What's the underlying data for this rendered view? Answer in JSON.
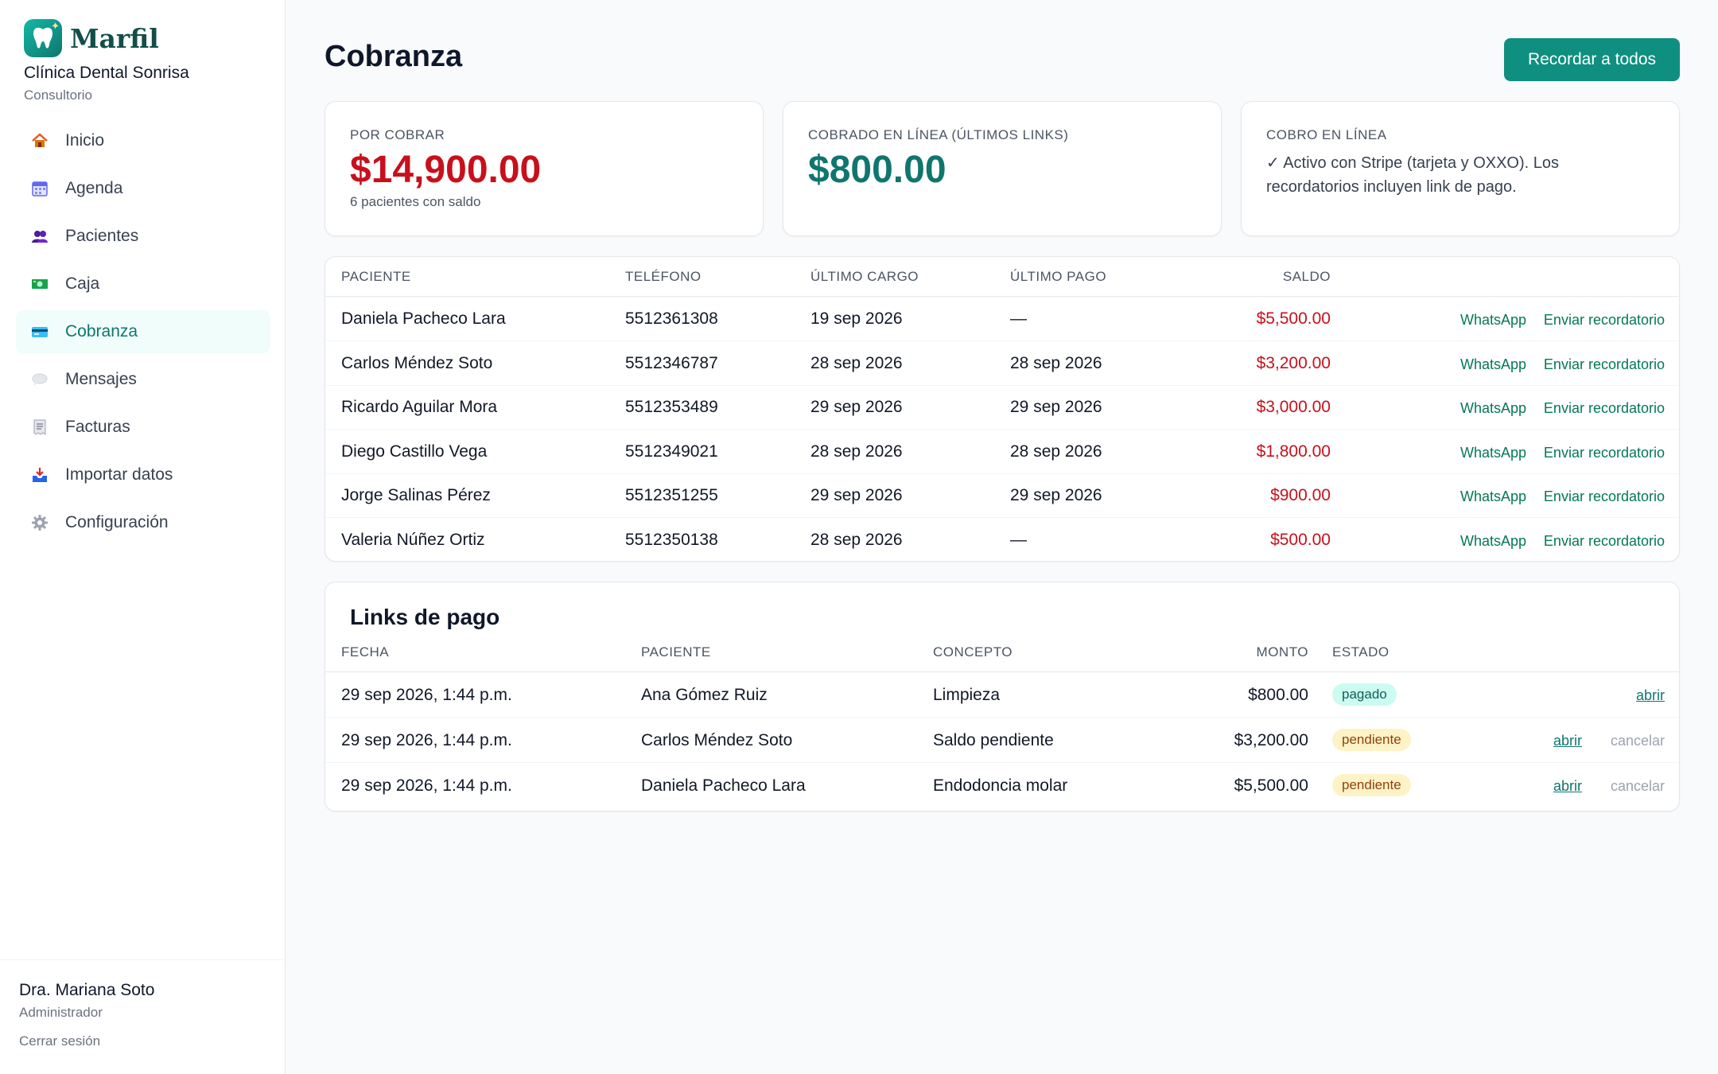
{
  "brand": {
    "name": "Marfil"
  },
  "clinic": {
    "name": "Clínica Dental Sonrisa",
    "type": "Consultorio"
  },
  "nav": [
    {
      "label": "Inicio",
      "icon": "house-icon"
    },
    {
      "label": "Agenda",
      "icon": "calendar-icon"
    },
    {
      "label": "Pacientes",
      "icon": "users-icon"
    },
    {
      "label": "Caja",
      "icon": "money-icon"
    },
    {
      "label": "Cobranza",
      "icon": "credit-card-icon",
      "active": true
    },
    {
      "label": "Mensajes",
      "icon": "speech-bubble-icon"
    },
    {
      "label": "Facturas",
      "icon": "receipt-icon"
    },
    {
      "label": "Importar datos",
      "icon": "inbox-tray-icon"
    },
    {
      "label": "Configuración",
      "icon": "gear-icon"
    }
  ],
  "user": {
    "name": "Dra. Mariana Soto",
    "role": "Administrador",
    "logout": "Cerrar sesión"
  },
  "page": {
    "title": "Cobranza",
    "remind_all": "Recordar a todos"
  },
  "stats": {
    "receivable": {
      "label": "POR COBRAR",
      "value": "$14,900.00",
      "sub": "6 pacientes con saldo"
    },
    "collected": {
      "label": "COBRADO EN LÍNEA (ÚLTIMOS LINKS)",
      "value": "$800.00"
    },
    "online": {
      "label": "COBRO EN LÍNEA",
      "text": "✓ Activo con Stripe (tarjeta y OXXO). Los recordatorios incluyen link de pago."
    }
  },
  "balances": {
    "headers": {
      "patient": "PACIENTE",
      "phone": "TELÉFONO",
      "last_charge": "ÚLTIMO CARGO",
      "last_payment": "ÚLTIMO PAGO",
      "balance": "SALDO"
    },
    "action_whatsapp": "WhatsApp",
    "action_remind": "Enviar recordatorio",
    "rows": [
      {
        "patient": "Daniela Pacheco Lara",
        "phone": "5512361308",
        "last_charge": "19 sep 2026",
        "last_payment": "—",
        "balance": "$5,500.00"
      },
      {
        "patient": "Carlos Méndez Soto",
        "phone": "5512346787",
        "last_charge": "28 sep 2026",
        "last_payment": "28 sep 2026",
        "balance": "$3,200.00"
      },
      {
        "patient": "Ricardo Aguilar Mora",
        "phone": "5512353489",
        "last_charge": "29 sep 2026",
        "last_payment": "29 sep 2026",
        "balance": "$3,000.00"
      },
      {
        "patient": "Diego Castillo Vega",
        "phone": "5512349021",
        "last_charge": "28 sep 2026",
        "last_payment": "28 sep 2026",
        "balance": "$1,800.00"
      },
      {
        "patient": "Jorge Salinas Pérez",
        "phone": "5512351255",
        "last_charge": "29 sep 2026",
        "last_payment": "29 sep 2026",
        "balance": "$900.00"
      },
      {
        "patient": "Valeria Núñez Ortiz",
        "phone": "5512350138",
        "last_charge": "28 sep 2026",
        "last_payment": "—",
        "balance": "$500.00"
      }
    ]
  },
  "links": {
    "title": "Links de pago",
    "headers": {
      "date": "FECHA",
      "patient": "PACIENTE",
      "concept": "CONCEPTO",
      "amount": "MONTO",
      "status": "ESTADO"
    },
    "action_open": "abrir",
    "action_cancel": "cancelar",
    "rows": [
      {
        "date": "29 sep 2026, 1:44 p.m.",
        "patient": "Ana Gómez Ruiz",
        "concept": "Limpieza",
        "amount": "$800.00",
        "status": "pagado",
        "cancelable": false
      },
      {
        "date": "29 sep 2026, 1:44 p.m.",
        "patient": "Carlos Méndez Soto",
        "concept": "Saldo pendiente",
        "amount": "$3,200.00",
        "status": "pendiente",
        "cancelable": true
      },
      {
        "date": "29 sep 2026, 1:44 p.m.",
        "patient": "Daniela Pacheco Lara",
        "concept": "Endodoncia molar",
        "amount": "$5,500.00",
        "status": "pendiente",
        "cancelable": true
      }
    ]
  },
  "colors": {
    "accent": "#0f8f7f",
    "danger": "#c8101c",
    "teal_text": "#0f766e"
  }
}
